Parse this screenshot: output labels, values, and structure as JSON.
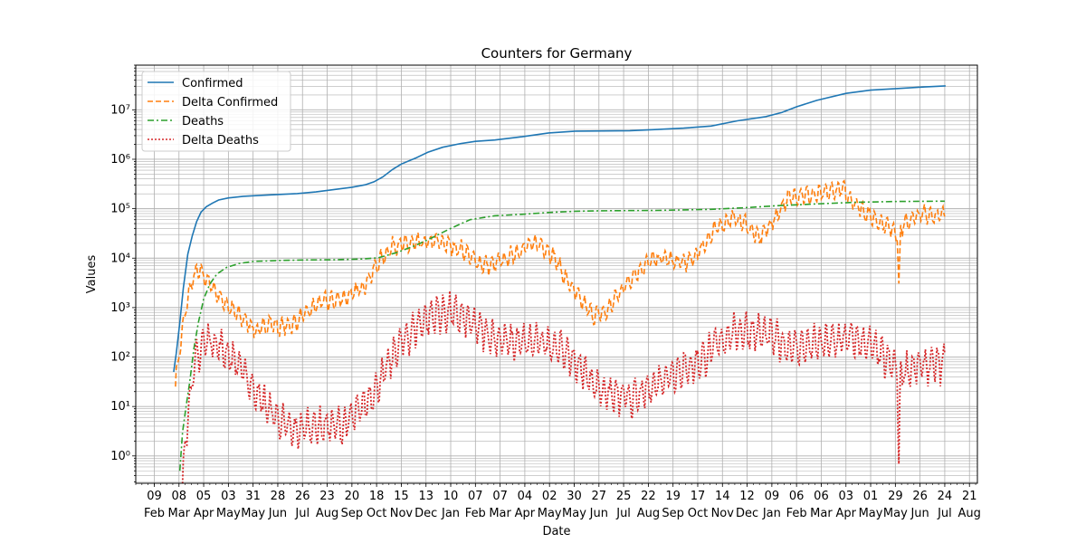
{
  "chart_data": {
    "type": "line",
    "title": "Counters for Germany",
    "xlabel": "Date",
    "ylabel": "Values",
    "yscale": "log",
    "ylim": [
      0.28,
      80000000
    ],
    "xlim": [
      "2020-01-19",
      "2022-08-30"
    ],
    "grid": true,
    "legend_position": "top-left",
    "x_ticks": [
      {
        "date": "2020-02-09",
        "day": "09",
        "month": "Feb"
      },
      {
        "date": "2020-03-08",
        "day": "08",
        "month": "Mar"
      },
      {
        "date": "2020-04-05",
        "day": "05",
        "month": "Apr"
      },
      {
        "date": "2020-05-03",
        "day": "03",
        "month": "May"
      },
      {
        "date": "2020-05-31",
        "day": "31",
        "month": "May"
      },
      {
        "date": "2020-06-28",
        "day": "28",
        "month": "Jun"
      },
      {
        "date": "2020-07-26",
        "day": "26",
        "month": "Jul"
      },
      {
        "date": "2020-08-23",
        "day": "23",
        "month": "Aug"
      },
      {
        "date": "2020-09-20",
        "day": "20",
        "month": "Sep"
      },
      {
        "date": "2020-10-18",
        "day": "18",
        "month": "Oct"
      },
      {
        "date": "2020-11-15",
        "day": "15",
        "month": "Nov"
      },
      {
        "date": "2020-12-13",
        "day": "13",
        "month": "Dec"
      },
      {
        "date": "2021-01-10",
        "day": "10",
        "month": "Jan"
      },
      {
        "date": "2021-02-07",
        "day": "07",
        "month": "Feb"
      },
      {
        "date": "2021-03-07",
        "day": "07",
        "month": "Mar"
      },
      {
        "date": "2021-04-04",
        "day": "04",
        "month": "Apr"
      },
      {
        "date": "2021-05-02",
        "day": "02",
        "month": "May"
      },
      {
        "date": "2021-05-30",
        "day": "30",
        "month": "May"
      },
      {
        "date": "2021-06-27",
        "day": "27",
        "month": "Jun"
      },
      {
        "date": "2021-07-25",
        "day": "25",
        "month": "Jul"
      },
      {
        "date": "2021-08-22",
        "day": "22",
        "month": "Aug"
      },
      {
        "date": "2021-09-19",
        "day": "19",
        "month": "Sep"
      },
      {
        "date": "2021-10-17",
        "day": "17",
        "month": "Oct"
      },
      {
        "date": "2021-11-14",
        "day": "14",
        "month": "Nov"
      },
      {
        "date": "2021-12-12",
        "day": "12",
        "month": "Dec"
      },
      {
        "date": "2022-01-09",
        "day": "09",
        "month": "Jan"
      },
      {
        "date": "2022-02-06",
        "day": "06",
        "month": "Feb"
      },
      {
        "date": "2022-03-06",
        "day": "06",
        "month": "Mar"
      },
      {
        "date": "2022-04-03",
        "day": "03",
        "month": "Apr"
      },
      {
        "date": "2022-05-01",
        "day": "01",
        "month": "May"
      },
      {
        "date": "2022-05-29",
        "day": "29",
        "month": "May"
      },
      {
        "date": "2022-06-26",
        "day": "26",
        "month": "Jun"
      },
      {
        "date": "2022-07-24",
        "day": "24",
        "month": "Jul"
      },
      {
        "date": "2022-08-21",
        "day": "21",
        "month": "Aug"
      }
    ],
    "y_ticks": [
      {
        "value": 1,
        "label": "10⁰"
      },
      {
        "value": 10,
        "label": "10¹"
      },
      {
        "value": 100,
        "label": "10²"
      },
      {
        "value": 1000,
        "label": "10³"
      },
      {
        "value": 10000,
        "label": "10⁴"
      },
      {
        "value": 100000,
        "label": "10⁵"
      },
      {
        "value": 1000000,
        "label": "10⁶"
      },
      {
        "value": 10000000,
        "label": "10⁷"
      }
    ],
    "series": [
      {
        "name": "Confirmed",
        "style": "solid",
        "color": "#1f77b4",
        "points": [
          [
            "2020-03-02",
            50
          ],
          [
            "2020-03-05",
            120
          ],
          [
            "2020-03-09",
            500
          ],
          [
            "2020-03-13",
            2500
          ],
          [
            "2020-03-18",
            12000
          ],
          [
            "2020-03-23",
            28000
          ],
          [
            "2020-03-28",
            55000
          ],
          [
            "2020-04-02",
            85000
          ],
          [
            "2020-04-08",
            110000
          ],
          [
            "2020-04-15",
            130000
          ],
          [
            "2020-04-22",
            150000
          ],
          [
            "2020-05-03",
            165000
          ],
          [
            "2020-05-20",
            178000
          ],
          [
            "2020-06-10",
            187000
          ],
          [
            "2020-07-01",
            195000
          ],
          [
            "2020-07-20",
            202000
          ],
          [
            "2020-08-10",
            218000
          ],
          [
            "2020-08-31",
            245000
          ],
          [
            "2020-09-20",
            272000
          ],
          [
            "2020-10-05",
            305000
          ],
          [
            "2020-10-15",
            350000
          ],
          [
            "2020-10-25",
            440000
          ],
          [
            "2020-11-05",
            620000
          ],
          [
            "2020-11-15",
            800000
          ],
          [
            "2020-12-01",
            1050000
          ],
          [
            "2020-12-15",
            1380000
          ],
          [
            "2021-01-01",
            1750000
          ],
          [
            "2021-01-20",
            2050000
          ],
          [
            "2021-02-07",
            2300000
          ],
          [
            "2021-03-01",
            2450000
          ],
          [
            "2021-04-01",
            2850000
          ],
          [
            "2021-05-01",
            3400000
          ],
          [
            "2021-06-01",
            3700000
          ],
          [
            "2021-07-01",
            3740000
          ],
          [
            "2021-08-01",
            3780000
          ],
          [
            "2021-09-01",
            4000000
          ],
          [
            "2021-10-01",
            4250000
          ],
          [
            "2021-11-01",
            4700000
          ],
          [
            "2021-12-01",
            6000000
          ],
          [
            "2022-01-01",
            7200000
          ],
          [
            "2022-01-20",
            8800000
          ],
          [
            "2022-02-06",
            11500000
          ],
          [
            "2022-03-01",
            15500000
          ],
          [
            "2022-04-03",
            21500000
          ],
          [
            "2022-05-01",
            25000000
          ],
          [
            "2022-06-01",
            27000000
          ],
          [
            "2022-07-01",
            29000000
          ],
          [
            "2022-07-25",
            30500000
          ]
        ]
      },
      {
        "name": "Delta Confirmed",
        "style": "dashed",
        "color": "#ff7f0e",
        "noise": 0.15,
        "points": [
          [
            "2020-03-04",
            30
          ],
          [
            "2020-03-10",
            200
          ],
          [
            "2020-03-16",
            1000
          ],
          [
            "2020-03-22",
            3000
          ],
          [
            "2020-03-28",
            5500
          ],
          [
            "2020-04-03",
            5000
          ],
          [
            "2020-04-12",
            3000
          ],
          [
            "2020-04-25",
            1500
          ],
          [
            "2020-05-10",
            800
          ],
          [
            "2020-05-25",
            500
          ],
          [
            "2020-06-05",
            320
          ],
          [
            "2020-06-18",
            500
          ],
          [
            "2020-06-30",
            400
          ],
          [
            "2020-07-15",
            450
          ],
          [
            "2020-08-01",
            800
          ],
          [
            "2020-08-15",
            1300
          ],
          [
            "2020-09-01",
            1400
          ],
          [
            "2020-09-20",
            1800
          ],
          [
            "2020-10-05",
            3000
          ],
          [
            "2020-10-20",
            8000
          ],
          [
            "2020-11-05",
            18000
          ],
          [
            "2020-11-20",
            19000
          ],
          [
            "2020-12-10",
            20000
          ],
          [
            "2020-12-25",
            22000
          ],
          [
            "2021-01-10",
            18000
          ],
          [
            "2021-01-25",
            14000
          ],
          [
            "2021-02-10",
            8000
          ],
          [
            "2021-02-25",
            7000
          ],
          [
            "2021-03-15",
            10000
          ],
          [
            "2021-04-05",
            17000
          ],
          [
            "2021-04-20",
            20000
          ],
          [
            "2021-05-05",
            12000
          ],
          [
            "2021-05-20",
            4000
          ],
          [
            "2021-06-05",
            1500
          ],
          [
            "2021-06-20",
            700
          ],
          [
            "2021-07-05",
            800
          ],
          [
            "2021-07-20",
            2000
          ],
          [
            "2021-08-05",
            4500
          ],
          [
            "2021-08-25",
            9000
          ],
          [
            "2021-09-10",
            10000
          ],
          [
            "2021-09-25",
            8000
          ],
          [
            "2021-10-10",
            9000
          ],
          [
            "2021-10-25",
            20000
          ],
          [
            "2021-11-10",
            45000
          ],
          [
            "2021-11-25",
            65000
          ],
          [
            "2021-12-10",
            50000
          ],
          [
            "2021-12-25",
            25000
          ],
          [
            "2022-01-10",
            55000
          ],
          [
            "2022-01-25",
            150000
          ],
          [
            "2022-02-10",
            200000
          ],
          [
            "2022-02-25",
            180000
          ],
          [
            "2022-03-15",
            220000
          ],
          [
            "2022-03-30",
            250000
          ],
          [
            "2022-04-15",
            120000
          ],
          [
            "2022-05-01",
            70000
          ],
          [
            "2022-05-15",
            50000
          ],
          [
            "2022-05-31",
            35000
          ],
          [
            "2022-06-02",
            2000
          ],
          [
            "2022-06-04",
            40000
          ],
          [
            "2022-06-15",
            60000
          ],
          [
            "2022-07-01",
            80000
          ],
          [
            "2022-07-24",
            70000
          ]
        ]
      },
      {
        "name": "Deaths",
        "style": "dashdot",
        "color": "#2ca02c",
        "points": [
          [
            "2020-03-09",
            0.5
          ],
          [
            "2020-03-12",
            3
          ],
          [
            "2020-03-16",
            10
          ],
          [
            "2020-03-20",
            30
          ],
          [
            "2020-03-25",
            150
          ],
          [
            "2020-03-30",
            500
          ],
          [
            "2020-04-05",
            1500
          ],
          [
            "2020-04-12",
            3000
          ],
          [
            "2020-04-20",
            4800
          ],
          [
            "2020-05-01",
            6500
          ],
          [
            "2020-05-15",
            7800
          ],
          [
            "2020-06-01",
            8600
          ],
          [
            "2020-07-01",
            9000
          ],
          [
            "2020-08-01",
            9200
          ],
          [
            "2020-09-01",
            9300
          ],
          [
            "2020-10-01",
            9600
          ],
          [
            "2020-10-20",
            10200
          ],
          [
            "2020-11-10",
            13000
          ],
          [
            "2020-12-01",
            18000
          ],
          [
            "2020-12-20",
            26000
          ],
          [
            "2021-01-10",
            40000
          ],
          [
            "2021-02-01",
            60000
          ],
          [
            "2021-03-01",
            72000
          ],
          [
            "2021-04-01",
            77000
          ],
          [
            "2021-05-01",
            84000
          ],
          [
            "2021-06-01",
            89000
          ],
          [
            "2021-07-01",
            91000
          ],
          [
            "2021-09-01",
            92500
          ],
          [
            "2021-11-01",
            97000
          ],
          [
            "2021-12-10",
            105000
          ],
          [
            "2022-01-15",
            115000
          ],
          [
            "2022-03-01",
            125000
          ],
          [
            "2022-04-15",
            135000
          ],
          [
            "2022-06-01",
            140000
          ],
          [
            "2022-07-24",
            142000
          ]
        ]
      },
      {
        "name": "Delta Deaths",
        "style": "dotted",
        "color": "#d62728",
        "noise": 0.3,
        "points": [
          [
            "2020-03-12",
            0.3
          ],
          [
            "2020-03-15",
            2
          ],
          [
            "2020-03-20",
            15
          ],
          [
            "2020-03-28",
            100
          ],
          [
            "2020-04-05",
            200
          ],
          [
            "2020-04-12",
            230
          ],
          [
            "2020-04-20",
            180
          ],
          [
            "2020-05-01",
            120
          ],
          [
            "2020-05-15",
            70
          ],
          [
            "2020-05-30",
            25
          ],
          [
            "2020-06-15",
            10
          ],
          [
            "2020-07-01",
            5
          ],
          [
            "2020-07-15",
            3
          ],
          [
            "2020-08-01",
            4
          ],
          [
            "2020-08-20",
            4
          ],
          [
            "2020-09-10",
            4
          ],
          [
            "2020-09-25",
            7
          ],
          [
            "2020-10-10",
            15
          ],
          [
            "2020-10-25",
            40
          ],
          [
            "2020-11-10",
            150
          ],
          [
            "2020-11-25",
            300
          ],
          [
            "2020-12-10",
            550
          ],
          [
            "2020-12-25",
            750
          ],
          [
            "2021-01-10",
            800
          ],
          [
            "2021-01-25",
            600
          ],
          [
            "2021-02-10",
            380
          ],
          [
            "2021-02-25",
            270
          ],
          [
            "2021-03-15",
            200
          ],
          [
            "2021-04-05",
            190
          ],
          [
            "2021-04-25",
            200
          ],
          [
            "2021-05-10",
            170
          ],
          [
            "2021-05-25",
            100
          ],
          [
            "2021-06-10",
            50
          ],
          [
            "2021-06-25",
            25
          ],
          [
            "2021-07-10",
            18
          ],
          [
            "2021-07-25",
            15
          ],
          [
            "2021-08-10",
            15
          ],
          [
            "2021-08-25",
            25
          ],
          [
            "2021-09-10",
            40
          ],
          [
            "2021-09-25",
            55
          ],
          [
            "2021-10-10",
            65
          ],
          [
            "2021-10-25",
            100
          ],
          [
            "2021-11-10",
            200
          ],
          [
            "2021-11-25",
            300
          ],
          [
            "2021-12-10",
            350
          ],
          [
            "2021-12-25",
            300
          ],
          [
            "2022-01-10",
            250
          ],
          [
            "2022-01-25",
            170
          ],
          [
            "2022-02-10",
            160
          ],
          [
            "2022-02-25",
            180
          ],
          [
            "2022-03-15",
            200
          ],
          [
            "2022-03-30",
            230
          ],
          [
            "2022-04-10",
            230
          ],
          [
            "2022-04-22",
            200
          ],
          [
            "2022-05-05",
            150
          ],
          [
            "2022-05-20",
            80
          ],
          [
            "2022-05-31",
            60
          ],
          [
            "2022-06-02",
            0.7
          ],
          [
            "2022-06-04",
            50
          ],
          [
            "2022-06-20",
            60
          ],
          [
            "2022-07-05",
            70
          ],
          [
            "2022-07-24",
            70
          ]
        ]
      }
    ]
  }
}
